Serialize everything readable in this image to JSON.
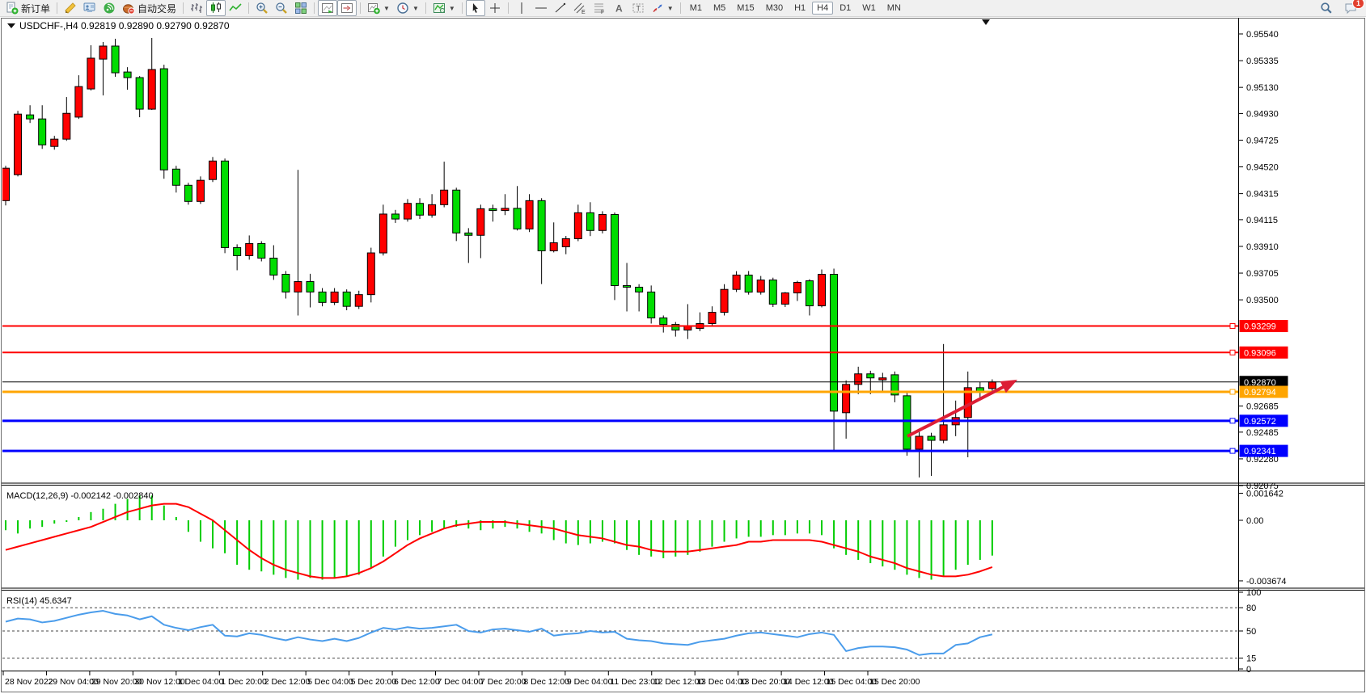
{
  "toolbar": {
    "buttons": [
      {
        "name": "new-order-button",
        "icon": "new-order-icon",
        "label": "新订单"
      },
      {
        "divider": true
      },
      {
        "name": "metaeditor-button",
        "icon": "metaeditor-icon"
      },
      {
        "name": "terminal-button",
        "icon": "terminal-icon"
      },
      {
        "name": "signals-button",
        "icon": "signals-icon"
      },
      {
        "name": "auto-trading-button",
        "icon": "auto-trading-icon",
        "label": "自动交易"
      },
      {
        "divider": true
      },
      {
        "name": "bar-chart-button",
        "icon": "bar-chart-icon"
      },
      {
        "name": "candlestick-chart-button",
        "icon": "candlestick-icon",
        "pressed": true
      },
      {
        "name": "line-chart-button",
        "icon": "line-chart-icon"
      },
      {
        "divider": true
      },
      {
        "name": "zoom-in-button",
        "icon": "zoom-in-icon"
      },
      {
        "name": "zoom-out-button",
        "icon": "zoom-out-icon"
      },
      {
        "name": "tile-windows-button",
        "icon": "tile-windows-icon"
      },
      {
        "divider": true
      },
      {
        "name": "auto-scroll-button",
        "icon": "auto-scroll-icon",
        "pressed": true
      },
      {
        "name": "chart-shift-button",
        "icon": "chart-shift-icon",
        "pressed": true
      },
      {
        "divider": true
      },
      {
        "name": "new-chart-button",
        "icon": "new-chart-icon",
        "dropdown": true
      },
      {
        "name": "periods-button",
        "icon": "clock-icon",
        "dropdown": true
      },
      {
        "divider": true
      },
      {
        "name": "indicators-button",
        "icon": "indicators-icon",
        "dropdown": true
      },
      {
        "divider": true
      },
      {
        "name": "cursor-button",
        "icon": "cursor-icon",
        "pressed": true
      },
      {
        "name": "crosshair-button",
        "icon": "crosshair-icon"
      },
      {
        "divider": true
      },
      {
        "name": "vertical-line-button",
        "icon": "vertical-line-icon"
      },
      {
        "name": "horizontal-line-button",
        "icon": "horizontal-line-icon"
      },
      {
        "name": "trendline-button",
        "icon": "trendline-icon"
      },
      {
        "name": "channel-button",
        "icon": "channel-icon"
      },
      {
        "name": "fibonacci-button",
        "icon": "fibonacci-icon"
      },
      {
        "name": "text-button",
        "icon": "text-icon"
      },
      {
        "name": "text-label-button",
        "icon": "text-label-icon"
      },
      {
        "name": "arrows-button",
        "icon": "arrows-icon",
        "dropdown": true
      },
      {
        "divider": true
      }
    ],
    "timeframes": [
      "M1",
      "M5",
      "M15",
      "M30",
      "H1",
      "H4",
      "D1",
      "W1",
      "MN"
    ],
    "active_timeframe": "H4",
    "chat_badge": "1"
  },
  "chart": {
    "symbol": "USDCHF-",
    "period": "H4",
    "open": "0.92819",
    "high": "0.92890",
    "low": "0.92790",
    "close": "0.92870",
    "title_text": "USDCHF-,H4  0.92819 0.92890 0.92790 0.92870",
    "price_axis_ticks": [
      "0.95540",
      "0.95335",
      "0.95130",
      "0.94930",
      "0.94725",
      "0.94520",
      "0.94315",
      "0.94115",
      "0.93910",
      "0.93705",
      "0.93500",
      "0.92685",
      "0.92485",
      "0.92280",
      "0.92075"
    ],
    "levels": [
      {
        "label": "0.93299",
        "price": 0.93299,
        "color": "#ff0000",
        "width": 2,
        "kind": "resistance"
      },
      {
        "label": "0.93096",
        "price": 0.93096,
        "color": "#ff0000",
        "width": 2,
        "kind": "resistance"
      },
      {
        "label": "0.92870",
        "price": 0.9287,
        "color": "#000000",
        "width": 1,
        "kind": "bid"
      },
      {
        "label": "0.92794",
        "price": 0.92794,
        "color": "#ffa500",
        "width": 3,
        "kind": "level"
      },
      {
        "label": "0.92572",
        "price": 0.92572,
        "color": "#0000ff",
        "width": 3,
        "kind": "support"
      },
      {
        "label": "0.92341",
        "price": 0.92341,
        "color": "#0000ff",
        "width": 3,
        "kind": "support"
      }
    ],
    "time_axis": [
      "28 Nov 2022",
      "29 Nov 04:00",
      "29 Nov 20:00",
      "30 Nov 12:00",
      "1 Dec 04:00",
      "1 Dec 20:00",
      "2 Dec 12:00",
      "5 Dec 04:00",
      "5 Dec 20:00",
      "6 Dec 12:00",
      "7 Dec 04:00",
      "7 Dec 20:00",
      "8 Dec 12:00",
      "9 Dec 04:00",
      "11 Dec 23:00",
      "12 Dec 12:00",
      "13 Dec 04:00",
      "13 Dec 20:00",
      "14 Dec 12:00",
      "15 Dec 04:00",
      "15 Dec 20:00"
    ]
  },
  "macd": {
    "label": "MACD(12,26,9)",
    "value": "-0.002142",
    "signal_value": "-0.002840",
    "label_text": "MACD(12,26,9) -0.002142 -0.002840",
    "scale_ticks": [
      "0.001642",
      "0.00",
      "-0.003674"
    ]
  },
  "rsi": {
    "label": "RSI(14)",
    "value": "45.6347",
    "label_text": "RSI(14) 45.6347",
    "scale_ticks": [
      "100",
      "80",
      "50",
      "15",
      "0"
    ],
    "dashed_levels": [
      80,
      50,
      15
    ]
  },
  "annotation_arrow": {
    "color": "#dc1e35",
    "from": [
      1122,
      540
    ],
    "to": [
      1258,
      470
    ]
  },
  "chart_data": {
    "type": "candlestick",
    "symbol": "USDCHF-",
    "timeframe": "H4",
    "bull_color": "#ff0000",
    "bear_color": "#00dd00",
    "ylim": [
      0.92075,
      0.9554
    ],
    "x_labels": [
      "28 Nov 2022",
      "29 Nov 04:00",
      "29 Nov 20:00",
      "30 Nov 12:00",
      "1 Dec 04:00",
      "1 Dec 20:00",
      "2 Dec 12:00",
      "5 Dec 04:00",
      "5 Dec 20:00",
      "6 Dec 12:00",
      "7 Dec 04:00",
      "7 Dec 20:00",
      "8 Dec 12:00",
      "9 Dec 04:00",
      "11 Dec 23:00",
      "12 Dec 12:00",
      "13 Dec 04:00",
      "13 Dec 20:00",
      "14 Dec 12:00",
      "15 Dec 04:00",
      "15 Dec 20:00"
    ],
    "candles_ohlc": [
      [
        0.94261,
        0.94528,
        0.94224,
        0.9451
      ],
      [
        0.9446,
        0.9495,
        0.94447,
        0.94925
      ],
      [
        0.94919,
        0.94993,
        0.94857,
        0.94888
      ],
      [
        0.94888,
        0.94993,
        0.94658,
        0.94689
      ],
      [
        0.94677,
        0.94758,
        0.94652,
        0.94733
      ],
      [
        0.94733,
        0.95056,
        0.9472,
        0.94931
      ],
      [
        0.94902,
        0.95223,
        0.94888,
        0.95136
      ],
      [
        0.95118,
        0.95453,
        0.95106,
        0.95354
      ],
      [
        0.95347,
        0.95478,
        0.95068,
        0.95447
      ],
      [
        0.95447,
        0.95503,
        0.95211,
        0.95242
      ],
      [
        0.95248,
        0.95285,
        0.95112,
        0.95205
      ],
      [
        0.95205,
        0.95217,
        0.94901,
        0.94963
      ],
      [
        0.94963,
        0.95509,
        0.94957,
        0.95267
      ],
      [
        0.95273,
        0.95304,
        0.94429,
        0.94497
      ],
      [
        0.94503,
        0.94528,
        0.94323,
        0.94379
      ],
      [
        0.94379,
        0.94398,
        0.9423,
        0.94255
      ],
      [
        0.94255,
        0.94447,
        0.94236,
        0.94417
      ],
      [
        0.94423,
        0.94596,
        0.94404,
        0.94565
      ],
      [
        0.94565,
        0.94584,
        0.93858,
        0.93901
      ],
      [
        0.93901,
        0.93926,
        0.93727,
        0.93839
      ],
      [
        0.93839,
        0.93994,
        0.93808,
        0.93932
      ],
      [
        0.93932,
        0.9395,
        0.93795,
        0.9382
      ],
      [
        0.9382,
        0.93919,
        0.93653,
        0.9369
      ],
      [
        0.93696,
        0.93721,
        0.9351,
        0.9356
      ],
      [
        0.9356,
        0.94497,
        0.9338,
        0.9364
      ],
      [
        0.9364,
        0.937,
        0.93442,
        0.9356
      ],
      [
        0.9356,
        0.9359,
        0.9345,
        0.9348
      ],
      [
        0.9348,
        0.9359,
        0.9346,
        0.9356
      ],
      [
        0.9356,
        0.9358,
        0.9342,
        0.9345
      ],
      [
        0.9345,
        0.9357,
        0.9343,
        0.9354
      ],
      [
        0.9354,
        0.939,
        0.9348,
        0.9386
      ],
      [
        0.9386,
        0.9423,
        0.9384,
        0.94158
      ],
      [
        0.94158,
        0.9419,
        0.9409,
        0.9412
      ],
      [
        0.9412,
        0.94273,
        0.941,
        0.9424
      ],
      [
        0.9424,
        0.9428,
        0.9412,
        0.9415
      ],
      [
        0.9415,
        0.94311,
        0.9413,
        0.9423
      ],
      [
        0.9423,
        0.9456,
        0.9421,
        0.94342
      ],
      [
        0.94342,
        0.9436,
        0.93951,
        0.94013
      ],
      [
        0.94013,
        0.9405,
        0.93783,
        0.93995
      ],
      [
        0.93995,
        0.9423,
        0.9382,
        0.94199
      ],
      [
        0.94199,
        0.9423,
        0.941,
        0.94185
      ],
      [
        0.94185,
        0.94311,
        0.9415,
        0.94202
      ],
      [
        0.94202,
        0.94373,
        0.94032,
        0.94044
      ],
      [
        0.94044,
        0.94311,
        0.9402,
        0.94261
      ],
      [
        0.94261,
        0.9428,
        0.93621,
        0.93876
      ],
      [
        0.93876,
        0.94094,
        0.93864,
        0.93938
      ],
      [
        0.93907,
        0.9399,
        0.9385,
        0.93969
      ],
      [
        0.93969,
        0.9423,
        0.9395,
        0.94168
      ],
      [
        0.94168,
        0.94249,
        0.93989,
        0.94032
      ],
      [
        0.94032,
        0.9418,
        0.9401,
        0.94155
      ],
      [
        0.94155,
        0.9417,
        0.93498,
        0.93609
      ],
      [
        0.93609,
        0.93783,
        0.93411,
        0.93597
      ],
      [
        0.93597,
        0.9362,
        0.93411,
        0.9356
      ],
      [
        0.9356,
        0.9361,
        0.93318,
        0.93361
      ],
      [
        0.93361,
        0.9338,
        0.93249,
        0.93311
      ],
      [
        0.93311,
        0.9333,
        0.93218,
        0.93268
      ],
      [
        0.93268,
        0.93467,
        0.93199,
        0.93298
      ],
      [
        0.9328,
        0.93404,
        0.9326,
        0.93318
      ],
      [
        0.93318,
        0.9345,
        0.933,
        0.93404
      ],
      [
        0.93404,
        0.9362,
        0.9338,
        0.9358
      ],
      [
        0.9358,
        0.9372,
        0.9356,
        0.9369
      ],
      [
        0.9369,
        0.93721,
        0.9354,
        0.93559
      ],
      [
        0.93559,
        0.93683,
        0.9354,
        0.93652
      ],
      [
        0.93652,
        0.9367,
        0.93445,
        0.93467
      ],
      [
        0.93467,
        0.9356,
        0.93445,
        0.93553
      ],
      [
        0.93553,
        0.93646,
        0.93491,
        0.93634
      ],
      [
        0.93646,
        0.93658,
        0.9338,
        0.93454
      ],
      [
        0.93454,
        0.93733,
        0.93442,
        0.93696
      ],
      [
        0.93696,
        0.93739,
        0.92335,
        0.92646
      ],
      [
        0.92634,
        0.92882,
        0.92435,
        0.92851
      ],
      [
        0.92851,
        0.92987,
        0.92776,
        0.92932
      ],
      [
        0.92932,
        0.92956,
        0.92776,
        0.92901
      ],
      [
        0.92885,
        0.9294,
        0.928,
        0.92901
      ],
      [
        0.92925,
        0.9295,
        0.92714,
        0.9277
      ],
      [
        0.92764,
        0.928,
        0.92304,
        0.92354
      ],
      [
        0.92354,
        0.925,
        0.92137,
        0.92453
      ],
      [
        0.92453,
        0.9248,
        0.92149,
        0.92422
      ],
      [
        0.92422,
        0.93161,
        0.924,
        0.92541
      ],
      [
        0.92541,
        0.92727,
        0.92454,
        0.92597
      ],
      [
        0.92597,
        0.9295,
        0.92292,
        0.92826
      ],
      [
        0.92826,
        0.9287,
        0.9275,
        0.9279
      ],
      [
        0.92819,
        0.9289,
        0.9279,
        0.9287
      ]
    ],
    "macd_histogram": [
      -0.0006,
      -0.0008,
      -0.0005,
      -0.0004,
      -0.0002,
      -0.0001,
      0.0002,
      0.0005,
      0.0007,
      0.001,
      0.0013,
      0.0015,
      0.0015,
      0.0009,
      0.0002,
      -0.0007,
      -0.0013,
      -0.0017,
      -0.002,
      -0.0027,
      -0.003,
      -0.0031,
      -0.0033,
      -0.0035,
      -0.0036,
      -0.0035,
      -0.0036,
      -0.0035,
      -0.0034,
      -0.0033,
      -0.0029,
      -0.0022,
      -0.0016,
      -0.0012,
      -0.0009,
      -0.0007,
      -0.0005,
      -0.0004,
      -0.0005,
      -0.0006,
      -0.0005,
      -0.0004,
      -0.0005,
      -0.0007,
      -0.0008,
      -0.0012,
      -0.0014,
      -0.0015,
      -0.0014,
      -0.0013,
      -0.0014,
      -0.0018,
      -0.0021,
      -0.0022,
      -0.0023,
      -0.0022,
      -0.0021,
      -0.0019,
      -0.0016,
      -0.0013,
      -0.0011,
      -0.001,
      -0.001,
      -0.0009,
      -0.0009,
      -0.0008,
      -0.0008,
      -0.0009,
      -0.0017,
      -0.0021,
      -0.0024,
      -0.0026,
      -0.0028,
      -0.003,
      -0.0033,
      -0.0035,
      -0.0036,
      -0.0034,
      -0.003,
      -0.0027,
      -0.0024,
      -0.002142
    ],
    "macd_signal": [
      -0.0018,
      -0.0016,
      -0.0014,
      -0.0012,
      -0.001,
      -0.0008,
      -0.0006,
      -0.0004,
      -0.0001,
      0.0002,
      0.0005,
      0.0007,
      0.0009,
      0.001,
      0.001,
      0.0008,
      0.0004,
      0.0,
      -0.0006,
      -0.0012,
      -0.0018,
      -0.0023,
      -0.0027,
      -0.003,
      -0.0032,
      -0.0034,
      -0.0035,
      -0.0035,
      -0.0034,
      -0.0032,
      -0.0029,
      -0.0025,
      -0.002,
      -0.0015,
      -0.0011,
      -0.0008,
      -0.0005,
      -0.0003,
      -0.0002,
      -0.0001,
      -0.0001,
      -0.0001,
      -0.0002,
      -0.0003,
      -0.0004,
      -0.0005,
      -0.0007,
      -0.0009,
      -0.001,
      -0.0011,
      -0.0013,
      -0.0015,
      -0.0016,
      -0.0018,
      -0.0019,
      -0.0019,
      -0.0019,
      -0.0018,
      -0.0017,
      -0.0016,
      -0.0015,
      -0.0013,
      -0.0013,
      -0.0012,
      -0.0012,
      -0.0012,
      -0.0012,
      -0.0013,
      -0.0015,
      -0.0017,
      -0.0019,
      -0.0022,
      -0.0024,
      -0.0026,
      -0.0029,
      -0.0031,
      -0.0033,
      -0.0034,
      -0.0034,
      -0.0033,
      -0.0031,
      -0.00284
    ],
    "rsi_values": [
      62,
      66,
      65,
      61,
      63,
      67,
      71,
      74,
      76,
      72,
      70,
      65,
      69,
      58,
      54,
      51,
      55,
      58,
      44,
      43,
      47,
      45,
      41,
      38,
      42,
      39,
      37,
      40,
      37,
      41,
      48,
      54,
      52,
      55,
      53,
      54,
      56,
      58,
      50,
      48,
      52,
      53,
      51,
      49,
      53,
      44,
      46,
      47,
      50,
      48,
      49,
      40,
      38,
      37,
      34,
      33,
      32,
      36,
      38,
      40,
      44,
      47,
      48,
      46,
      44,
      42,
      46,
      48,
      45,
      24,
      28,
      30,
      30,
      29,
      26,
      19,
      21,
      21,
      32,
      34,
      42,
      45.6
    ]
  }
}
